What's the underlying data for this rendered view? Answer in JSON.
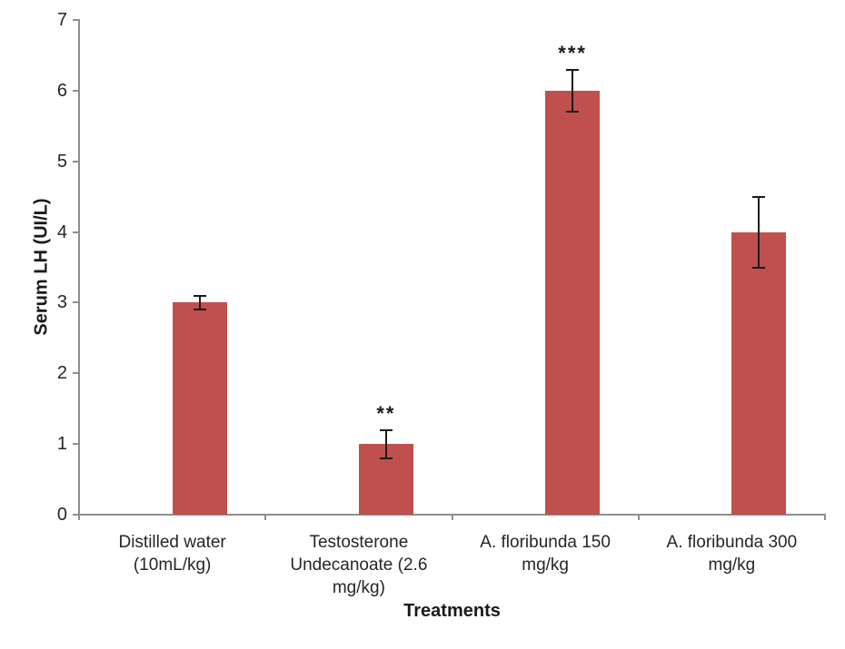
{
  "chart_data": {
    "type": "bar",
    "title": "",
    "categories": [
      "Distilled water (10mL/kg)",
      "Testosterone Undecanoate (2.6 mg/kg)",
      "A. floribunda 150 mg/kg",
      "A. floribunda 300 mg/kg"
    ],
    "category_label_lines": [
      [
        "Distilled water",
        "(10mL/kg)"
      ],
      [
        "Testosterone",
        "Undecanoate (2.6",
        "mg/kg)"
      ],
      [
        "A. floribunda 150",
        "mg/kg"
      ],
      [
        "A. floribunda 300",
        "mg/kg"
      ]
    ],
    "values": [
      3,
      1,
      6,
      4
    ],
    "errors": [
      0.1,
      0.2,
      0.3,
      0.5
    ],
    "significance": [
      "",
      "**",
      "***",
      ""
    ],
    "xlabel": "Treatments",
    "ylabel": "Serum LH (UI/L)",
    "ylim": [
      0,
      7
    ],
    "yticks": [
      0,
      1,
      2,
      3,
      4,
      5,
      6,
      7
    ],
    "grid": false,
    "legend": false,
    "colors": {
      "bar": "#C0504D",
      "axis": "#8E8E8E",
      "error_bar": "#1A1A1A",
      "text": "#262626"
    }
  }
}
